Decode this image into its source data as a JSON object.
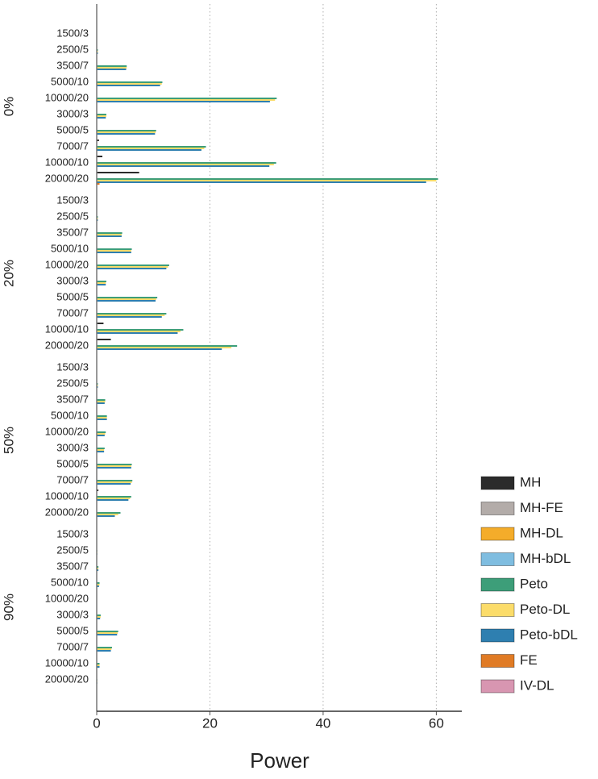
{
  "chart_data": {
    "type": "grouped-bar-horizontal",
    "x_label": "Power",
    "xlim": [
      0,
      64.5
    ],
    "xticks": [
      0,
      20,
      40,
      60
    ],
    "grid": true,
    "facets": [
      {
        "label": "0%",
        "categories": [
          "1500/3",
          "2500/5",
          "3500/7",
          "5000/10",
          "10000/20",
          "3000/3",
          "5000/5",
          "7000/7",
          "10000/10",
          "20000/20"
        ]
      },
      {
        "label": "20%",
        "categories": [
          "1500/3",
          "2500/5",
          "3500/7",
          "5000/10",
          "10000/20",
          "3000/3",
          "5000/5",
          "7000/7",
          "10000/10",
          "20000/20"
        ]
      },
      {
        "label": "50%",
        "categories": [
          "1500/3",
          "2500/5",
          "3500/7",
          "5000/10",
          "10000/20",
          "3000/3",
          "5000/5",
          "7000/7",
          "10000/10",
          "20000/20"
        ]
      },
      {
        "label": "90%",
        "categories": [
          "1500/3",
          "2500/5",
          "3500/7",
          "5000/10",
          "10000/20",
          "3000/3",
          "5000/5",
          "7000/7",
          "10000/10",
          "20000/20"
        ]
      }
    ],
    "series": [
      {
        "name": "MH",
        "color": "#2b2b2b",
        "values": [
          [
            0,
            0,
            0,
            0,
            0,
            0,
            0,
            0.4,
            1.0,
            7.5
          ],
          [
            0,
            0,
            0,
            0,
            0,
            0,
            0,
            0,
            1.2,
            2.5
          ],
          [
            0,
            0,
            0,
            0,
            0,
            0,
            0,
            0,
            0.3,
            0
          ],
          [
            0,
            0,
            0,
            0,
            0,
            0,
            0,
            0,
            0,
            0
          ]
        ]
      },
      {
        "name": "MH-FE",
        "color": "#b3aca9",
        "values": [
          [
            0,
            0,
            0,
            0,
            0,
            0,
            0,
            0,
            0,
            0
          ],
          [
            0,
            0,
            0,
            0,
            0,
            0,
            0,
            0,
            0,
            0
          ],
          [
            0,
            0,
            0,
            0,
            0,
            0,
            0,
            0,
            0,
            0
          ],
          [
            0,
            0,
            0,
            0,
            0,
            0,
            0,
            0,
            0,
            0
          ]
        ]
      },
      {
        "name": "MH-DL",
        "color": "#f4ac2a",
        "values": [
          [
            0,
            0,
            0,
            0,
            0,
            0,
            0,
            0,
            0,
            0
          ],
          [
            0,
            0,
            0,
            0,
            0,
            0,
            0,
            0,
            0,
            0
          ],
          [
            0,
            0,
            0,
            0,
            0,
            0,
            0,
            0,
            0,
            0
          ],
          [
            0,
            0,
            0,
            0,
            0,
            0,
            0,
            0,
            0,
            0
          ]
        ]
      },
      {
        "name": "MH-bDL",
        "color": "#7fbde0",
        "values": [
          [
            0,
            0,
            0,
            0,
            0,
            0,
            0,
            0,
            0,
            0
          ],
          [
            0,
            0,
            0,
            0,
            0,
            0,
            0,
            0,
            0,
            0
          ],
          [
            0,
            0,
            0,
            0,
            0,
            0,
            0,
            0,
            0,
            0
          ],
          [
            0,
            0,
            0,
            0,
            0,
            0,
            0,
            0,
            0,
            0
          ]
        ]
      },
      {
        "name": "Peto",
        "color": "#3d9e79",
        "values": [
          [
            0,
            0.2,
            5.3,
            11.6,
            31.8,
            1.7,
            10.5,
            19.3,
            31.7,
            60.3
          ],
          [
            0,
            0.2,
            4.5,
            6.2,
            12.8,
            1.7,
            10.7,
            12.3,
            15.3,
            24.8
          ],
          [
            0,
            0.2,
            1.5,
            1.8,
            1.6,
            1.4,
            6.2,
            6.3,
            6.1,
            4.2
          ],
          [
            0,
            0.1,
            0.3,
            0.5,
            0,
            0.7,
            3.8,
            2.7,
            0.5,
            0.1
          ]
        ]
      },
      {
        "name": "Peto-DL",
        "color": "#fbdc6a",
        "values": [
          [
            0,
            0.2,
            5.3,
            11.5,
            31.5,
            1.7,
            10.4,
            19.0,
            31.3,
            60.0
          ],
          [
            0,
            0.2,
            4.4,
            6.1,
            12.6,
            1.6,
            10.5,
            12.0,
            14.8,
            23.8
          ],
          [
            0,
            0.2,
            1.5,
            1.8,
            1.5,
            1.3,
            6.1,
            6.2,
            5.9,
            3.8
          ],
          [
            0,
            0.1,
            0.3,
            0.5,
            0,
            0.7,
            3.7,
            2.6,
            0.5,
            0.1
          ]
        ]
      },
      {
        "name": "Peto-bDL",
        "color": "#2e7fb0",
        "values": [
          [
            0,
            0.2,
            5.2,
            11.2,
            30.6,
            1.6,
            10.3,
            18.5,
            30.5,
            58.2
          ],
          [
            0,
            0.2,
            4.4,
            6.1,
            12.3,
            1.6,
            10.4,
            11.5,
            14.3,
            22.1
          ],
          [
            0,
            0.2,
            1.4,
            1.8,
            1.4,
            1.3,
            6.1,
            6.0,
            5.6,
            3.2
          ],
          [
            0,
            0.1,
            0.3,
            0.4,
            0,
            0.6,
            3.6,
            2.5,
            0.5,
            0.1
          ]
        ]
      },
      {
        "name": "FE",
        "color": "#e07b25",
        "values": [
          [
            0,
            0,
            0,
            0,
            0,
            0,
            0,
            0,
            0,
            0.5
          ],
          [
            0,
            0,
            0,
            0,
            0,
            0,
            0,
            0,
            0,
            0
          ],
          [
            0,
            0,
            0,
            0,
            0,
            0,
            0,
            0,
            0,
            0
          ],
          [
            0,
            0,
            0,
            0,
            0,
            0,
            0,
            0,
            0,
            0
          ]
        ]
      },
      {
        "name": "IV-DL",
        "color": "#d896b1",
        "values": [
          [
            0,
            0,
            0,
            0,
            0,
            0,
            0,
            0,
            0,
            0
          ],
          [
            0,
            0,
            0,
            0,
            0,
            0,
            0,
            0,
            0,
            0
          ],
          [
            0,
            0,
            0,
            0,
            0,
            0,
            0,
            0,
            0,
            0
          ],
          [
            0,
            0,
            0,
            0,
            0,
            0,
            0,
            0,
            0,
            0
          ]
        ]
      }
    ]
  }
}
